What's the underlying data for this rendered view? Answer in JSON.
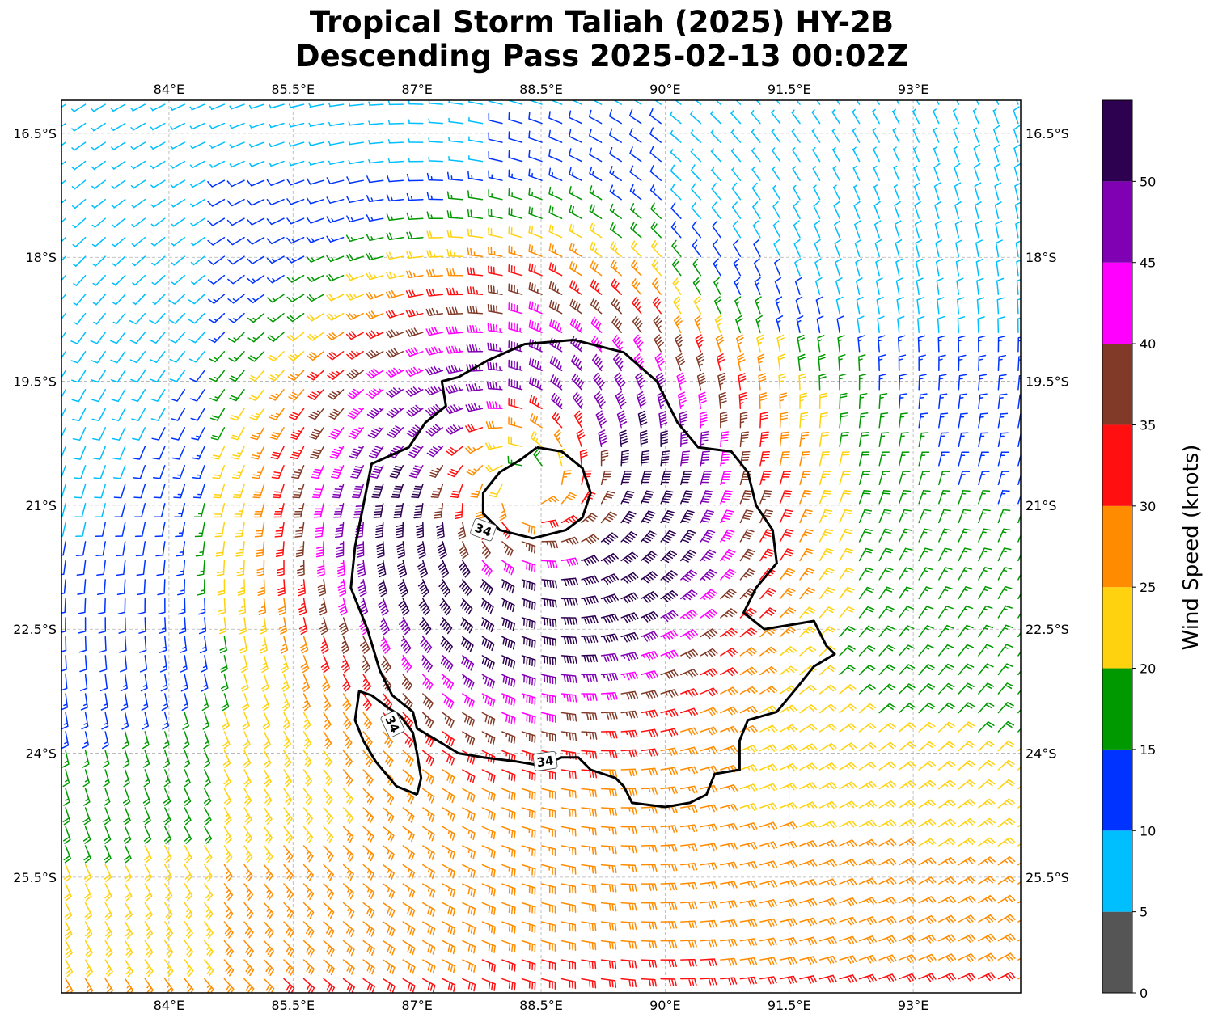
{
  "title": {
    "line1": "Tropical Storm Taliah (2025) HY-2B",
    "line2": "Descending Pass 2025-02-13 00:02Z"
  },
  "map": {
    "lon_range": [
      82.7,
      94.3
    ],
    "lat_range": [
      -26.9,
      -16.1
    ],
    "lon_ticks": [
      84.0,
      85.5,
      87.0,
      88.5,
      90.0,
      91.5,
      93.0
    ],
    "lat_ticks": [
      -16.5,
      -18.0,
      -19.5,
      -21.0,
      -22.5,
      -24.0,
      -25.5
    ],
    "lon_tick_labels": [
      "84°E",
      "85.5°E",
      "87°E",
      "88.5°E",
      "90°E",
      "91.5°E",
      "93°E"
    ],
    "lat_tick_labels": [
      "16.5°S",
      "18°S",
      "19.5°S",
      "21°S",
      "22.5°S",
      "24°S",
      "25.5°S"
    ],
    "gridlines": true,
    "storm_center": {
      "lon": 88.3,
      "lat": -20.8
    }
  },
  "colorbar": {
    "label": "Wind Speed (knots)",
    "bounds": [
      0,
      5,
      10,
      15,
      20,
      25,
      30,
      35,
      40,
      45,
      50,
      55
    ],
    "tick_values": [
      0,
      5,
      10,
      15,
      20,
      25,
      30,
      35,
      40,
      45,
      50
    ],
    "tick_labels": [
      "0",
      "5",
      "10",
      "15",
      "20",
      "25",
      "30",
      "35",
      "40",
      "45",
      "50"
    ],
    "colors": [
      "#555555",
      "#00bfff",
      "#0033ff",
      "#009900",
      "#ffd20f",
      "#ff8c00",
      "#ff0f0f",
      "#823a28",
      "#ff00ff",
      "#8000b4",
      "#2d0050"
    ]
  },
  "contour": {
    "value": 34,
    "color": "#000000",
    "labels": [
      {
        "text": "34",
        "lon": 87.8,
        "lat": -21.3
      },
      {
        "text": "34",
        "lon": 86.7,
        "lat": -23.65
      },
      {
        "text": "34",
        "lon": 88.55,
        "lat": -24.1
      }
    ],
    "outer_ring": [
      [
        88.9,
        -19.0
      ],
      [
        89.5,
        -19.15
      ],
      [
        89.9,
        -19.5
      ],
      [
        90.15,
        -20.0
      ],
      [
        90.4,
        -20.3
      ],
      [
        90.8,
        -20.35
      ],
      [
        91.0,
        -20.6
      ],
      [
        91.1,
        -21.0
      ],
      [
        91.3,
        -21.3
      ],
      [
        91.35,
        -21.7
      ],
      [
        91.1,
        -22.0
      ],
      [
        90.95,
        -22.3
      ],
      [
        91.2,
        -22.5
      ],
      [
        91.5,
        -22.45
      ],
      [
        91.8,
        -22.4
      ],
      [
        91.95,
        -22.7
      ],
      [
        92.05,
        -22.8
      ],
      [
        91.8,
        -22.95
      ],
      [
        91.6,
        -23.2
      ],
      [
        91.35,
        -23.5
      ],
      [
        91.0,
        -23.6
      ],
      [
        90.9,
        -23.85
      ],
      [
        90.9,
        -24.2
      ],
      [
        90.6,
        -24.25
      ],
      [
        90.5,
        -24.5
      ],
      [
        90.3,
        -24.6
      ],
      [
        90.0,
        -24.65
      ],
      [
        89.6,
        -24.6
      ],
      [
        89.5,
        -24.4
      ],
      [
        89.4,
        -24.3
      ],
      [
        89.1,
        -24.2
      ],
      [
        88.95,
        -24.05
      ],
      [
        88.75,
        -24.05
      ],
      [
        88.5,
        -24.15
      ],
      [
        88.2,
        -24.1
      ],
      [
        87.8,
        -24.05
      ],
      [
        87.5,
        -24.0
      ],
      [
        87.25,
        -23.85
      ],
      [
        87.0,
        -23.7
      ],
      [
        86.95,
        -23.5
      ],
      [
        86.7,
        -23.3
      ],
      [
        86.55,
        -23.0
      ],
      [
        86.4,
        -22.5
      ],
      [
        86.2,
        -22.0
      ],
      [
        86.25,
        -21.5
      ],
      [
        86.35,
        -21.0
      ],
      [
        86.45,
        -20.5
      ],
      [
        86.9,
        -20.3
      ],
      [
        87.1,
        -20.0
      ],
      [
        87.35,
        -19.8
      ],
      [
        87.3,
        -19.5
      ],
      [
        87.5,
        -19.45
      ],
      [
        87.85,
        -19.25
      ],
      [
        88.3,
        -19.05
      ],
      [
        88.9,
        -19.0
      ]
    ],
    "tail": [
      [
        87.0,
        -24.5
      ],
      [
        86.75,
        -24.4
      ],
      [
        86.5,
        -24.1
      ],
      [
        86.35,
        -23.85
      ],
      [
        86.25,
        -23.6
      ],
      [
        86.3,
        -23.25
      ],
      [
        86.45,
        -23.3
      ],
      [
        86.65,
        -23.45
      ],
      [
        86.8,
        -23.55
      ],
      [
        86.95,
        -23.75
      ],
      [
        87.0,
        -24.0
      ],
      [
        87.05,
        -24.3
      ],
      [
        87.0,
        -24.5
      ]
    ],
    "inner_ring": [
      [
        88.45,
        -20.3
      ],
      [
        88.75,
        -20.35
      ],
      [
        89.0,
        -20.55
      ],
      [
        89.1,
        -20.85
      ],
      [
        89.0,
        -21.15
      ],
      [
        88.8,
        -21.3
      ],
      [
        88.4,
        -21.4
      ],
      [
        88.0,
        -21.3
      ],
      [
        87.8,
        -21.1
      ],
      [
        87.8,
        -20.85
      ],
      [
        88.0,
        -20.6
      ],
      [
        88.25,
        -20.45
      ],
      [
        88.45,
        -20.3
      ]
    ]
  }
}
